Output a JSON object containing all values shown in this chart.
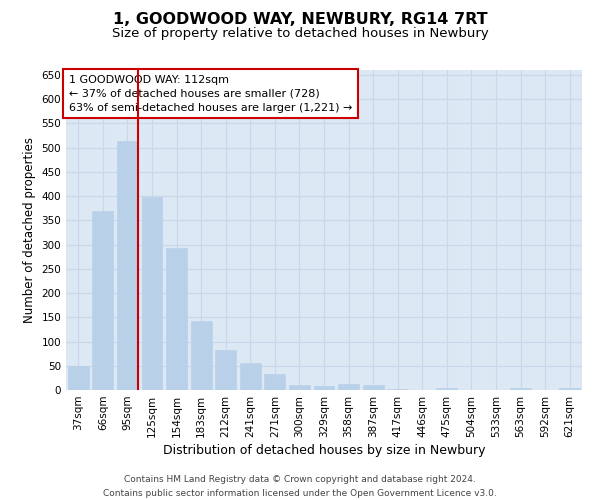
{
  "title": "1, GOODWOOD WAY, NEWBURY, RG14 7RT",
  "subtitle": "Size of property relative to detached houses in Newbury",
  "xlabel": "Distribution of detached houses by size in Newbury",
  "ylabel": "Number of detached properties",
  "categories": [
    "37sqm",
    "66sqm",
    "95sqm",
    "125sqm",
    "154sqm",
    "183sqm",
    "212sqm",
    "241sqm",
    "271sqm",
    "300sqm",
    "329sqm",
    "358sqm",
    "387sqm",
    "417sqm",
    "446sqm",
    "475sqm",
    "504sqm",
    "533sqm",
    "563sqm",
    "592sqm",
    "621sqm"
  ],
  "values": [
    50,
    370,
    513,
    398,
    293,
    143,
    82,
    55,
    32,
    10,
    9,
    13,
    10,
    2,
    0,
    4,
    0,
    0,
    5,
    0,
    4
  ],
  "bar_color": "#b8d0e8",
  "bar_edge_color": "#b8d0e8",
  "grid_color": "#c8d8ec",
  "background_color": "#dce8f4",
  "annotation_line1": "1 GOODWOOD WAY: 112sqm",
  "annotation_line2": "← 37% of detached houses are smaller (728)",
  "annotation_line3": "63% of semi-detached houses are larger (1,221) →",
  "annotation_box_facecolor": "#ffffff",
  "annotation_box_edgecolor": "#cc0000",
  "vline_color": "#cc0000",
  "vline_x": 2.45,
  "ylim": [
    0,
    660
  ],
  "yticks": [
    0,
    50,
    100,
    150,
    200,
    250,
    300,
    350,
    400,
    450,
    500,
    550,
    600,
    650
  ],
  "footer_line1": "Contains HM Land Registry data © Crown copyright and database right 2024.",
  "footer_line2": "Contains public sector information licensed under the Open Government Licence v3.0.",
  "title_fontsize": 11.5,
  "subtitle_fontsize": 9.5,
  "xlabel_fontsize": 9,
  "ylabel_fontsize": 8.5,
  "tick_fontsize": 7.5,
  "annot_fontsize": 8,
  "footer_fontsize": 6.5
}
